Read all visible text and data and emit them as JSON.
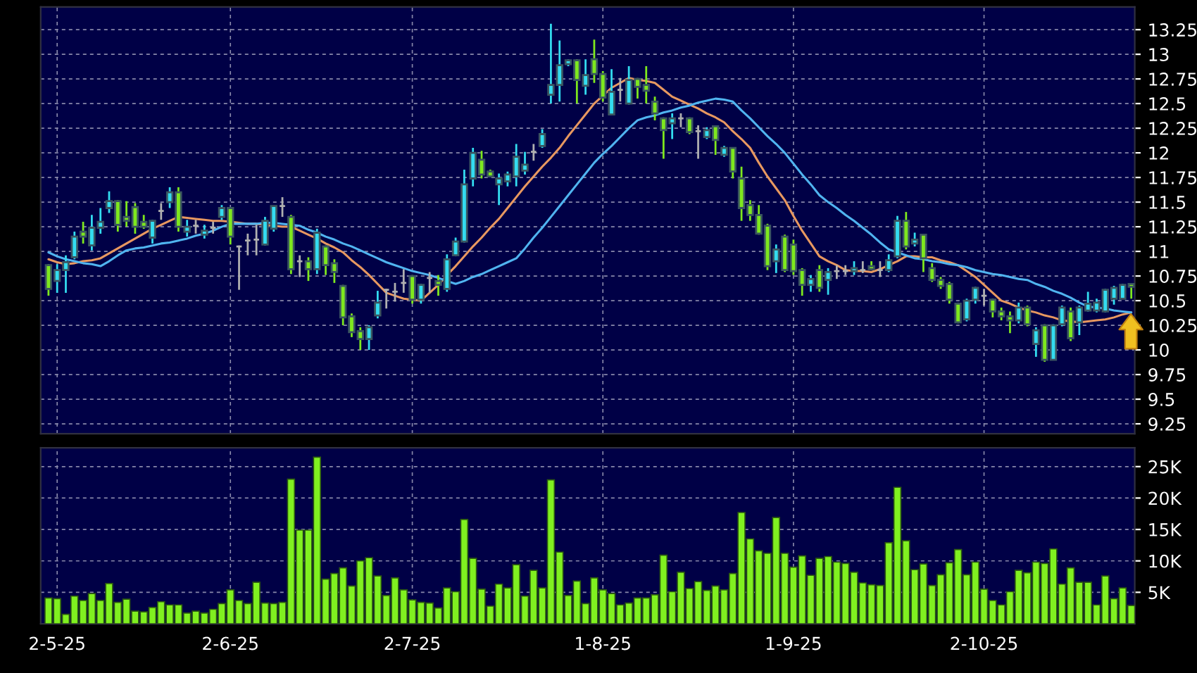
{
  "chart_data": [
    {
      "type": "candlestick",
      "categories": [
        null,
        null,
        null,
        null,
        null,
        null,
        null,
        null,
        null,
        null,
        null,
        null,
        null,
        null,
        null,
        null,
        null,
        null,
        null,
        null,
        null,
        null,
        null,
        null,
        null,
        null,
        null,
        null,
        null,
        null,
        null,
        null,
        null,
        null,
        null,
        null,
        null,
        null,
        null,
        null,
        null,
        null,
        null,
        null,
        null,
        null,
        null,
        null,
        null,
        null,
        null,
        null,
        null,
        null,
        null,
        null,
        null,
        null,
        null,
        null,
        null,
        null,
        null,
        null,
        null,
        null,
        null,
        null,
        null,
        null,
        null,
        null,
        null,
        null,
        null,
        null,
        null,
        null,
        null,
        null,
        null,
        null,
        null,
        null,
        null,
        null,
        null,
        null,
        null,
        null,
        null,
        null,
        null,
        null,
        null,
        null,
        null,
        null,
        null,
        null,
        null,
        null,
        null,
        null,
        null,
        null,
        null,
        null,
        null,
        null,
        null,
        null,
        null,
        null,
        null,
        null,
        null,
        null,
        null,
        null,
        null,
        null,
        null,
        null,
        null,
        null
      ],
      "ohlc": [
        [
          10.86,
          10.87,
          10.55,
          10.62
        ],
        [
          10.7,
          10.87,
          10.58,
          10.81
        ],
        [
          10.81,
          10.96,
          10.58,
          10.89
        ],
        [
          10.94,
          11.2,
          10.92,
          11.15
        ],
        [
          11.2,
          11.3,
          11.08,
          11.15
        ],
        [
          11.06,
          11.37,
          11.01,
          11.24
        ],
        [
          11.24,
          11.44,
          11.18,
          11.3
        ],
        [
          11.44,
          11.61,
          11.39,
          11.51
        ],
        [
          11.51,
          11.52,
          11.2,
          11.27
        ],
        [
          11.35,
          11.51,
          11.25,
          11.31
        ],
        [
          11.45,
          11.49,
          11.18,
          11.25
        ],
        [
          11.3,
          11.37,
          11.23,
          11.25
        ],
        [
          11.14,
          11.32,
          11.08,
          11.31
        ],
        [
          11.41,
          11.49,
          11.32,
          11.41
        ],
        [
          11.5,
          11.65,
          11.44,
          11.6
        ],
        [
          11.6,
          11.65,
          11.2,
          11.25
        ],
        [
          11.2,
          11.32,
          11.15,
          11.25
        ],
        [
          11.26,
          11.32,
          11.18,
          11.26
        ],
        [
          11.17,
          11.27,
          11.13,
          11.21
        ],
        [
          11.24,
          11.3,
          11.18,
          11.24
        ],
        [
          11.35,
          11.47,
          11.32,
          11.44
        ],
        [
          11.44,
          11.45,
          11.07,
          11.15
        ],
        [
          11.05,
          11.06,
          10.61,
          11.05
        ],
        [
          11.11,
          11.18,
          10.96,
          11.11
        ],
        [
          11.12,
          11.27,
          10.96,
          11.12
        ],
        [
          11.07,
          11.35,
          11.06,
          11.31
        ],
        [
          11.23,
          11.46,
          11.2,
          11.46
        ],
        [
          11.46,
          11.55,
          11.35,
          11.46
        ],
        [
          11.35,
          11.37,
          10.77,
          10.82
        ],
        [
          10.9,
          10.96,
          10.74,
          10.9
        ],
        [
          10.9,
          10.94,
          10.7,
          10.82
        ],
        [
          10.82,
          11.23,
          10.77,
          11.19
        ],
        [
          11.05,
          11.06,
          10.76,
          10.86
        ],
        [
          10.88,
          10.92,
          10.68,
          10.79
        ],
        [
          10.65,
          10.66,
          10.25,
          10.33
        ],
        [
          10.34,
          10.37,
          10.13,
          10.18
        ],
        [
          10.19,
          10.23,
          10.0,
          10.11
        ],
        [
          10.11,
          10.25,
          10.0,
          10.23
        ],
        [
          10.35,
          10.6,
          10.32,
          10.48
        ],
        [
          10.61,
          10.62,
          10.42,
          10.61
        ],
        [
          10.59,
          10.68,
          10.49,
          10.59
        ],
        [
          10.68,
          10.82,
          10.58,
          10.68
        ],
        [
          10.75,
          10.76,
          10.47,
          10.51
        ],
        [
          10.51,
          10.67,
          10.47,
          10.66
        ],
        [
          10.73,
          10.79,
          10.58,
          10.73
        ],
        [
          10.7,
          10.76,
          10.55,
          10.66
        ],
        [
          10.62,
          10.97,
          10.59,
          10.92
        ],
        [
          10.96,
          11.14,
          10.95,
          11.1
        ],
        [
          11.1,
          11.83,
          11.09,
          11.68
        ],
        [
          11.74,
          12.05,
          11.66,
          12.0
        ],
        [
          11.93,
          12.02,
          11.74,
          11.78
        ],
        [
          11.81,
          11.83,
          11.76,
          11.76
        ],
        [
          11.68,
          11.79,
          11.47,
          11.74
        ],
        [
          11.71,
          11.81,
          11.66,
          11.78
        ],
        [
          11.76,
          12.09,
          11.66,
          11.96
        ],
        [
          11.82,
          12.01,
          11.78,
          11.88
        ],
        [
          12.01,
          12.09,
          11.92,
          12.01
        ],
        [
          12.07,
          12.24,
          12.05,
          12.19
        ],
        [
          12.59,
          13.31,
          12.5,
          12.69
        ],
        [
          12.69,
          13.14,
          12.52,
          12.89
        ],
        [
          12.9,
          12.95,
          12.88,
          12.94
        ],
        [
          12.94,
          12.95,
          12.5,
          12.74
        ],
        [
          12.68,
          12.95,
          12.59,
          12.79
        ],
        [
          12.95,
          13.15,
          12.71,
          12.8
        ],
        [
          12.8,
          12.83,
          12.52,
          12.56
        ],
        [
          12.39,
          12.85,
          12.38,
          12.62
        ],
        [
          12.64,
          12.76,
          12.52,
          12.64
        ],
        [
          12.5,
          12.88,
          12.49,
          12.74
        ],
        [
          12.75,
          12.76,
          12.55,
          12.67
        ],
        [
          12.69,
          12.88,
          12.5,
          12.63
        ],
        [
          12.52,
          12.57,
          12.33,
          12.4
        ],
        [
          12.35,
          12.36,
          11.94,
          12.23
        ],
        [
          12.3,
          12.4,
          12.14,
          12.35
        ],
        [
          12.35,
          12.4,
          12.26,
          12.35
        ],
        [
          12.35,
          12.36,
          12.19,
          12.21
        ],
        [
          12.22,
          12.28,
          11.94,
          12.22
        ],
        [
          12.16,
          12.26,
          12.14,
          12.23
        ],
        [
          12.27,
          12.28,
          11.98,
          12.13
        ],
        [
          11.98,
          12.07,
          11.96,
          12.05
        ],
        [
          12.05,
          12.05,
          11.74,
          11.81
        ],
        [
          11.74,
          11.86,
          11.31,
          11.44
        ],
        [
          11.47,
          11.52,
          11.31,
          11.37
        ],
        [
          11.37,
          11.47,
          11.17,
          11.18
        ],
        [
          11.26,
          11.28,
          10.81,
          10.85
        ],
        [
          10.9,
          11.07,
          10.78,
          11.02
        ],
        [
          11.15,
          11.17,
          10.79,
          10.81
        ],
        [
          11.07,
          11.12,
          10.76,
          10.8
        ],
        [
          10.81,
          10.83,
          10.55,
          10.66
        ],
        [
          10.66,
          10.76,
          10.59,
          10.72
        ],
        [
          10.81,
          10.86,
          10.59,
          10.63
        ],
        [
          10.71,
          10.83,
          10.56,
          10.79
        ],
        [
          10.8,
          10.86,
          10.72,
          10.8
        ],
        [
          10.8,
          10.86,
          10.76,
          10.8
        ],
        [
          10.8,
          10.9,
          10.76,
          10.83
        ],
        [
          10.81,
          10.9,
          10.78,
          10.81
        ],
        [
          10.85,
          10.9,
          10.81,
          10.82
        ],
        [
          10.81,
          10.9,
          10.74,
          10.81
        ],
        [
          10.81,
          10.97,
          10.79,
          10.91
        ],
        [
          10.95,
          11.36,
          10.93,
          11.31
        ],
        [
          11.31,
          11.4,
          11.02,
          11.05
        ],
        [
          11.08,
          11.19,
          11.05,
          11.12
        ],
        [
          11.17,
          11.17,
          10.79,
          10.93
        ],
        [
          10.83,
          10.88,
          10.69,
          10.71
        ],
        [
          10.71,
          10.74,
          10.62,
          10.65
        ],
        [
          10.67,
          10.69,
          10.47,
          10.51
        ],
        [
          10.47,
          10.48,
          10.27,
          10.28
        ],
        [
          10.31,
          10.52,
          10.29,
          10.5
        ],
        [
          10.51,
          10.64,
          10.47,
          10.63
        ],
        [
          10.55,
          10.62,
          10.45,
          10.55
        ],
        [
          10.51,
          10.52,
          10.33,
          10.39
        ],
        [
          10.39,
          10.43,
          10.3,
          10.34
        ],
        [
          10.34,
          10.39,
          10.17,
          10.3
        ],
        [
          10.3,
          10.48,
          10.27,
          10.43
        ],
        [
          10.43,
          10.45,
          10.24,
          10.26
        ],
        [
          10.06,
          10.23,
          9.93,
          10.2
        ],
        [
          10.25,
          10.26,
          9.88,
          9.9
        ],
        [
          9.9,
          10.26,
          9.9,
          10.25
        ],
        [
          10.26,
          10.45,
          10.24,
          10.43
        ],
        [
          10.39,
          10.43,
          10.09,
          10.12
        ],
        [
          10.28,
          10.45,
          10.15,
          10.43
        ],
        [
          10.4,
          10.59,
          10.39,
          10.47
        ],
        [
          10.4,
          10.52,
          10.38,
          10.48
        ],
        [
          10.39,
          10.62,
          10.38,
          10.61
        ],
        [
          10.52,
          10.65,
          10.46,
          10.63
        ],
        [
          10.52,
          10.67,
          10.52,
          10.66
        ],
        [
          10.67,
          10.67,
          10.52,
          10.64
        ]
      ],
      "colors": [
        "#7ee81e",
        "#33dcf0",
        "#33dcf0",
        "#33dcf0",
        "#7ee81e",
        "#33dcf0",
        "#33dcf0",
        "#33dcf0",
        "#7ee81e",
        "#7ee81e",
        "#7ee81e",
        "#7ee81e",
        "#33dcf0",
        "#b0b0b0",
        "#33dcf0",
        "#7ee81e",
        "#33dcf0",
        "#b0b0b0",
        "#33dcf0",
        "#b0b0b0",
        "#33dcf0",
        "#7ee81e",
        "#b0b0b0",
        "#b0b0b0",
        "#b0b0b0",
        "#33dcf0",
        "#33dcf0",
        "#b0b0b0",
        "#7ee81e",
        "#b0b0b0",
        "#7ee81e",
        "#33dcf0",
        "#7ee81e",
        "#7ee81e",
        "#7ee81e",
        "#7ee81e",
        "#7ee81e",
        "#33dcf0",
        "#33dcf0",
        "#b0b0b0",
        "#b0b0b0",
        "#b0b0b0",
        "#7ee81e",
        "#33dcf0",
        "#b0b0b0",
        "#7ee81e",
        "#33dcf0",
        "#33dcf0",
        "#33dcf0",
        "#33dcf0",
        "#7ee81e",
        "#7ee81e",
        "#33dcf0",
        "#33dcf0",
        "#33dcf0",
        "#33dcf0",
        "#b0b0b0",
        "#33dcf0",
        "#33dcf0",
        "#33dcf0",
        "#33dcf0",
        "#7ee81e",
        "#33dcf0",
        "#7ee81e",
        "#7ee81e",
        "#33dcf0",
        "#b0b0b0",
        "#33dcf0",
        "#7ee81e",
        "#7ee81e",
        "#7ee81e",
        "#7ee81e",
        "#33dcf0",
        "#b0b0b0",
        "#7ee81e",
        "#b0b0b0",
        "#33dcf0",
        "#7ee81e",
        "#33dcf0",
        "#7ee81e",
        "#7ee81e",
        "#7ee81e",
        "#7ee81e",
        "#7ee81e",
        "#33dcf0",
        "#7ee81e",
        "#7ee81e",
        "#7ee81e",
        "#33dcf0",
        "#7ee81e",
        "#33dcf0",
        "#b0b0b0",
        "#b0b0b0",
        "#33dcf0",
        "#b0b0b0",
        "#7ee81e",
        "#b0b0b0",
        "#33dcf0",
        "#33dcf0",
        "#7ee81e",
        "#33dcf0",
        "#7ee81e",
        "#7ee81e",
        "#7ee81e",
        "#7ee81e",
        "#7ee81e",
        "#33dcf0",
        "#33dcf0",
        "#b0b0b0",
        "#7ee81e",
        "#7ee81e",
        "#7ee81e",
        "#33dcf0",
        "#7ee81e",
        "#33dcf0",
        "#7ee81e",
        "#33dcf0",
        "#33dcf0",
        "#7ee81e",
        "#33dcf0",
        "#33dcf0",
        "#33dcf0",
        "#33dcf0",
        "#33dcf0",
        "#33dcf0",
        "#7ee81e"
      ],
      "series": [
        {
          "type": "line",
          "color": "#e89860",
          "values": [
            10.92,
            10.89,
            10.87,
            10.88,
            10.9,
            10.91,
            10.93,
            10.98,
            11.03,
            11.08,
            11.13,
            11.18,
            11.23,
            11.27,
            11.31,
            11.35,
            11.34,
            11.33,
            11.32,
            11.31,
            11.31,
            11.3,
            11.29,
            11.28,
            11.28,
            11.27,
            11.26,
            11.25,
            11.25,
            11.21,
            11.17,
            11.13,
            11.08,
            11.04,
            10.99,
            10.91,
            10.84,
            10.76,
            10.67,
            10.58,
            10.55,
            10.52,
            10.51,
            10.5,
            10.58,
            10.66,
            10.76,
            10.85,
            10.95,
            11.05,
            11.14,
            11.24,
            11.33,
            11.44,
            11.55,
            11.66,
            11.76,
            11.86,
            11.95,
            12.05,
            12.17,
            12.28,
            12.39,
            12.5,
            12.58,
            12.66,
            12.71,
            12.76,
            12.74,
            12.73,
            12.71,
            12.64,
            12.57,
            12.53,
            12.49,
            12.45,
            12.4,
            12.36,
            12.31,
            12.22,
            12.14,
            12.05,
            11.9,
            11.76,
            11.64,
            11.52,
            11.36,
            11.21,
            11.08,
            10.95,
            10.9,
            10.86,
            10.81,
            10.8,
            10.8,
            10.79,
            10.82,
            10.86,
            10.9,
            10.95,
            10.95,
            10.94,
            10.94,
            10.91,
            10.89,
            10.86,
            10.8,
            10.74,
            10.66,
            10.58,
            10.5,
            10.47,
            10.43,
            10.4,
            10.38,
            10.35,
            10.33,
            10.3,
            10.29,
            10.28,
            10.29,
            10.3,
            10.31,
            10.33,
            10.36,
            10.38
          ]
        },
        {
          "type": "line",
          "color": "#50b4f0",
          "values": [
            10.99,
            10.95,
            10.92,
            10.9,
            10.88,
            10.87,
            10.85,
            10.9,
            10.96,
            11.01,
            11.03,
            11.04,
            11.06,
            11.08,
            11.09,
            11.11,
            11.13,
            11.16,
            11.18,
            11.21,
            11.25,
            11.28,
            11.28,
            11.28,
            11.28,
            11.29,
            11.29,
            11.28,
            11.27,
            11.26,
            11.22,
            11.19,
            11.15,
            11.12,
            11.08,
            11.05,
            11.01,
            10.97,
            10.93,
            10.89,
            10.86,
            10.83,
            10.8,
            10.78,
            10.76,
            10.73,
            10.7,
            10.67,
            10.7,
            10.74,
            10.77,
            10.81,
            10.85,
            10.89,
            10.93,
            11.03,
            11.14,
            11.24,
            11.35,
            11.46,
            11.57,
            11.68,
            11.79,
            11.9,
            11.99,
            12.07,
            12.16,
            12.25,
            12.33,
            12.36,
            12.38,
            12.41,
            12.43,
            12.46,
            12.48,
            12.51,
            12.53,
            12.55,
            12.54,
            12.52,
            12.43,
            12.35,
            12.26,
            12.17,
            12.09,
            12.0,
            11.89,
            11.78,
            11.68,
            11.57,
            11.5,
            11.44,
            11.37,
            11.31,
            11.24,
            11.17,
            11.09,
            11.02,
            10.99,
            10.96,
            10.93,
            10.92,
            10.9,
            10.89,
            10.87,
            10.86,
            10.84,
            10.81,
            10.79,
            10.77,
            10.76,
            10.74,
            10.72,
            10.71,
            10.67,
            10.64,
            10.6,
            10.57,
            10.53,
            10.48,
            10.44,
            10.43,
            10.42,
            10.4,
            10.39,
            10.38
          ]
        }
      ],
      "ylim": [
        9.15,
        13.48
      ],
      "yticks": [
        9.25,
        9.5,
        9.75,
        10,
        10.25,
        10.5,
        10.75,
        11,
        11.25,
        11.5,
        11.75,
        12,
        12.25,
        12.5,
        12.75,
        13,
        13.25
      ],
      "grid": true,
      "tick_labels": "y"
    },
    {
      "type": "bar",
      "color": "#80f020",
      "categories": [
        null,
        "2-5-25",
        null,
        null,
        null,
        null,
        null,
        null,
        null,
        null,
        null,
        null,
        null,
        null,
        null,
        null,
        null,
        null,
        null,
        null,
        null,
        "2-6-25",
        null,
        null,
        null,
        null,
        null,
        null,
        null,
        null,
        null,
        null,
        null,
        null,
        null,
        null,
        null,
        null,
        null,
        null,
        null,
        null,
        "2-7-25",
        null,
        null,
        null,
        null,
        null,
        null,
        null,
        null,
        null,
        null,
        null,
        null,
        null,
        null,
        null,
        null,
        null,
        null,
        null,
        null,
        null,
        "1-8-25",
        null,
        null,
        null,
        null,
        null,
        null,
        null,
        null,
        null,
        null,
        null,
        null,
        null,
        null,
        null,
        null,
        null,
        null,
        null,
        null,
        null,
        "1-9-25",
        null,
        null,
        null,
        null,
        null,
        null,
        null,
        null,
        null,
        null,
        null,
        null,
        null,
        null,
        null,
        null,
        null,
        null,
        null,
        null,
        null,
        "2-10-25",
        null,
        null,
        null,
        null,
        null,
        null,
        null,
        null,
        null,
        null,
        null,
        null,
        null,
        null,
        null,
        null,
        null
      ],
      "values": [
        4.1,
        4.0,
        1.5,
        4.4,
        3.7,
        4.8,
        3.7,
        6.4,
        3.4,
        3.9,
        2.0,
        1.9,
        2.6,
        3.5,
        3.0,
        3.0,
        1.7,
        2.0,
        1.7,
        2.3,
        3.2,
        5.4,
        3.7,
        3.2,
        6.6,
        3.3,
        3.2,
        3.4,
        23.0,
        14.9,
        14.9,
        26.5,
        7.1,
        8.0,
        8.9,
        6.0,
        10.0,
        10.5,
        7.6,
        4.5,
        7.3,
        5.4,
        3.8,
        3.4,
        3.3,
        2.5,
        5.7,
        5.1,
        16.6,
        10.4,
        5.5,
        2.8,
        6.3,
        5.7,
        9.4,
        4.4,
        8.5,
        5.7,
        22.9,
        11.4,
        4.5,
        6.8,
        3.2,
        7.3,
        5.4,
        4.8,
        3.0,
        3.3,
        4.1,
        4.1,
        4.6,
        10.9,
        5.1,
        8.2,
        5.6,
        6.7,
        5.3,
        6.0,
        5.4,
        8.0,
        17.7,
        13.5,
        11.6,
        11.2,
        16.9,
        11.2,
        9.0,
        10.8,
        7.7,
        10.4,
        10.7,
        9.8,
        9.6,
        8.2,
        6.5,
        6.2,
        6.1,
        12.9,
        21.7,
        13.2,
        8.6,
        9.5,
        6.1,
        7.8,
        9.7,
        11.8,
        7.8,
        9.8,
        5.5,
        3.7,
        3.0,
        5.1,
        8.5,
        8.1,
        9.8,
        9.6,
        11.9,
        6.3,
        8.9,
        6.6,
        6.6,
        3.0,
        7.6,
        4.0,
        5.7,
        2.9
      ],
      "ylim": [
        0,
        28
      ],
      "yticks": [
        {
          "value": 5,
          "label": "5K"
        },
        {
          "value": 10,
          "label": "10K"
        },
        {
          "value": 15,
          "label": "15K"
        },
        {
          "value": 20,
          "label": "20K"
        },
        {
          "value": 25,
          "label": "25K"
        }
      ],
      "grid": true
    }
  ]
}
